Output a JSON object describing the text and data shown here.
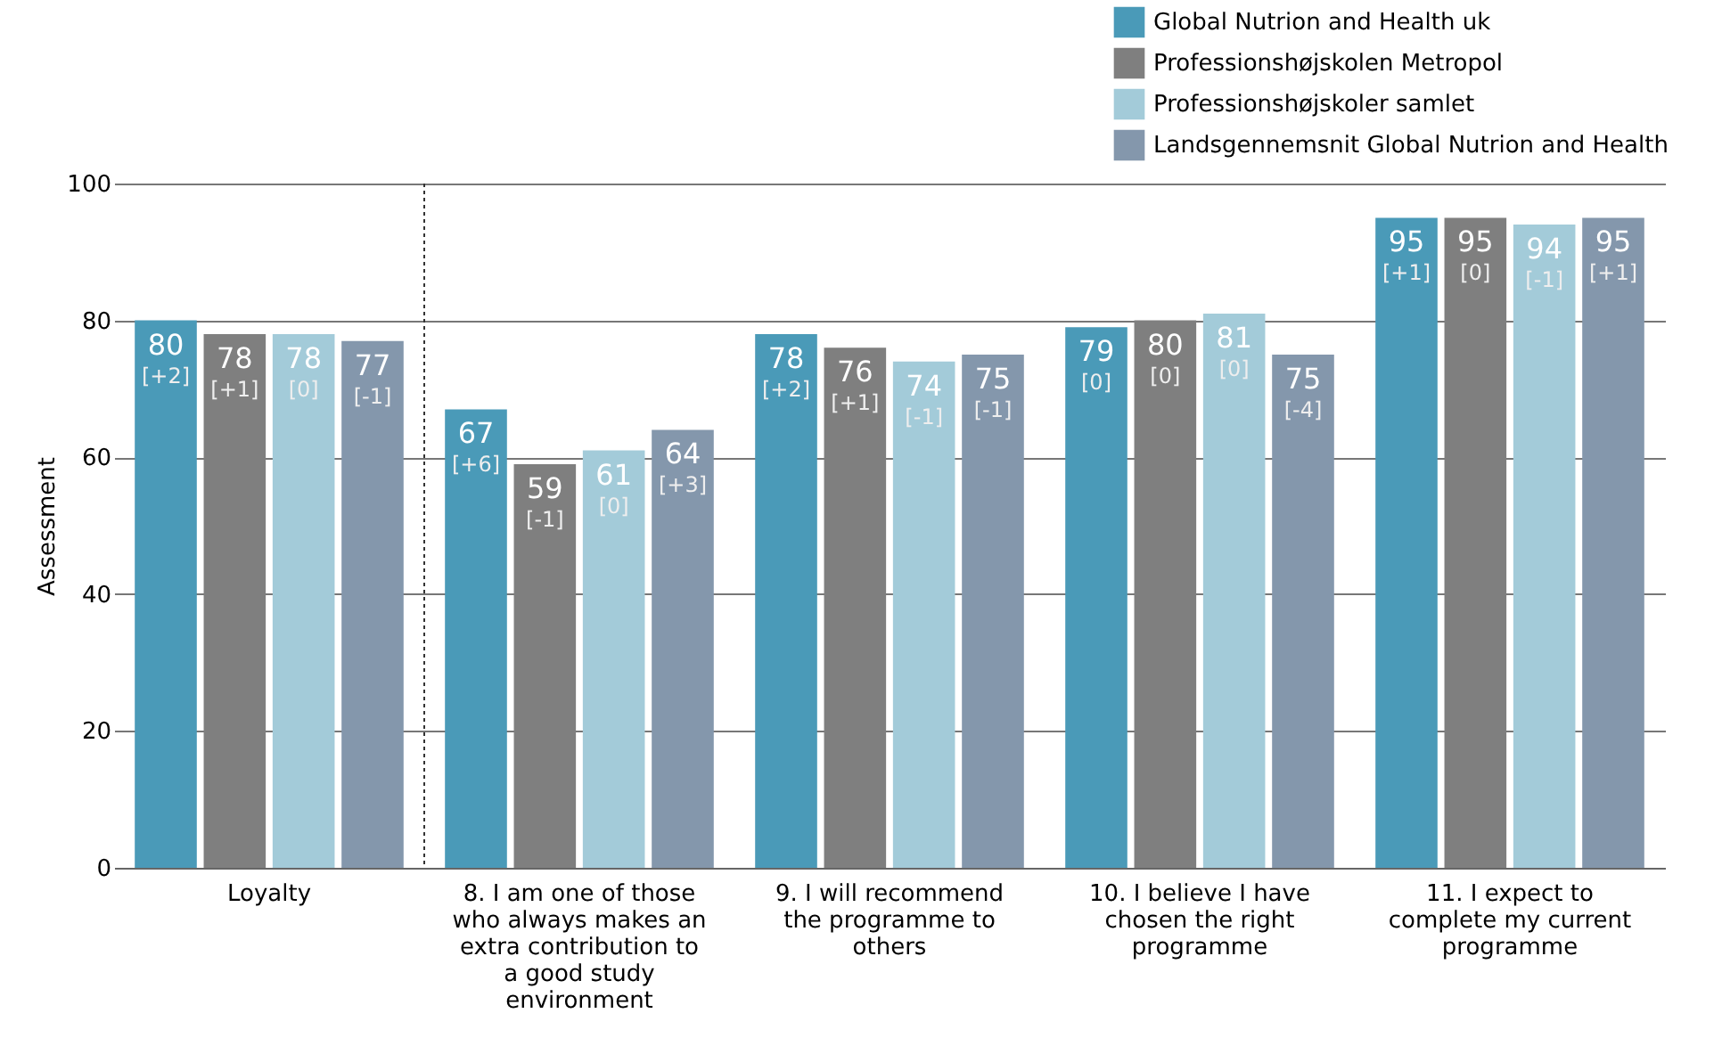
{
  "chart_data": {
    "type": "bar",
    "ylabel": "Assessment",
    "categories": [
      "Loyalty",
      "8. I am one of those who always makes an extra contribution to a good study environment",
      "9. I will recommend the programme to others",
      "10. I believe I have chosen the right programme",
      "11. I expect to complete my current programme"
    ],
    "series": [
      {
        "name": "Global Nutrion and Health uk",
        "color": "#4a9ab8",
        "values": [
          80,
          67,
          78,
          79,
          95
        ],
        "value_labels": [
          "80 [+2]",
          "67 [+6]",
          "78 [+2]",
          "79 [0]",
          "95 [+1]"
        ]
      },
      {
        "name": "Professionshøjskolen Metropol",
        "color": "#7f7f7f",
        "values": [
          78,
          59,
          76,
          80,
          95
        ],
        "value_labels": [
          "78 [+1]",
          "59 [-1]",
          "76 [+1]",
          "80 [0]",
          "95 [0]"
        ]
      },
      {
        "name": "Professionshøjskoler samlet",
        "color": "#a3cbd9",
        "values": [
          78,
          61,
          74,
          81,
          94
        ],
        "value_labels": [
          "78 [0]",
          "61 [0]",
          "74 [-1]",
          "81 [0]",
          "94 [-1]"
        ]
      },
      {
        "name": "Landsgennemsnit Global Nutrion and Health",
        "color": "#8497ac",
        "values": [
          77,
          64,
          75,
          75,
          95
        ],
        "value_labels": [
          "77 [-1]",
          "64 [+3]",
          "75 [-1]",
          "75 [-4]",
          "95 [+1]"
        ]
      }
    ],
    "ylim": [
      0,
      100
    ],
    "yticks": [
      0,
      20,
      40,
      60,
      80,
      100
    ],
    "grid": "y",
    "legend": "top right",
    "ref_lines": [
      {
        "axis": "x",
        "value": "Loyalty",
        "line_style": "dotted",
        "color": "#333333"
      }
    ]
  }
}
